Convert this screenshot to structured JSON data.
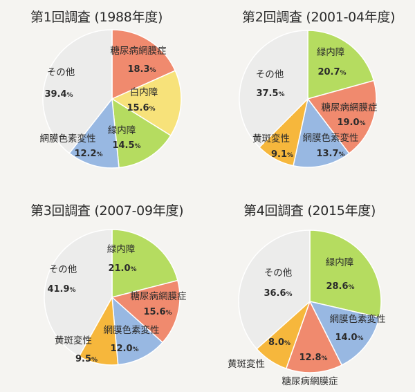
{
  "chart_data": [
    {
      "type": "pie",
      "title": "第1回調査 (1988年度)",
      "slices": [
        {
          "label": "糖尿病網膜症",
          "value": 18.3,
          "value_text": "18.3",
          "color": "#f08a6e"
        },
        {
          "label": "白内障",
          "value": 15.6,
          "value_text": "15.6",
          "color": "#f7e27a"
        },
        {
          "label": "緑内障",
          "value": 14.5,
          "value_text": "14.5",
          "color": "#b5dc60"
        },
        {
          "label": "網膜色素変性",
          "value": 12.2,
          "value_text": "12.2",
          "color": "#98b8e2"
        },
        {
          "label": "その他",
          "value": 39.4,
          "value_text": "39.4",
          "color": "#ececeb"
        }
      ]
    },
    {
      "type": "pie",
      "title": "第2回調査 (2001-04年度)",
      "slices": [
        {
          "label": "緑内障",
          "value": 20.7,
          "value_text": "20.7",
          "color": "#b5dc60"
        },
        {
          "label": "糖尿病網膜症",
          "value": 19.0,
          "value_text": "19.0",
          "color": "#f08a6e"
        },
        {
          "label": "網膜色素変性",
          "value": 13.7,
          "value_text": "13.7",
          "color": "#98b8e2"
        },
        {
          "label": "黄斑変性",
          "value": 9.1,
          "value_text": "9.1",
          "color": "#f6b73c"
        },
        {
          "label": "その他",
          "value": 37.5,
          "value_text": "37.5",
          "color": "#ececeb"
        }
      ]
    },
    {
      "type": "pie",
      "title": "第3回調査 (2007-09年度)",
      "slices": [
        {
          "label": "緑内障",
          "value": 21.0,
          "value_text": "21.0",
          "color": "#b5dc60"
        },
        {
          "label": "糖尿病網膜症",
          "value": 15.6,
          "value_text": "15.6",
          "color": "#f08a6e"
        },
        {
          "label": "網膜色素変性",
          "value": 12.0,
          "value_text": "12.0",
          "color": "#98b8e2"
        },
        {
          "label": "黄斑変性",
          "value": 9.5,
          "value_text": "9.5",
          "color": "#f6b73c"
        },
        {
          "label": "その他",
          "value": 41.9,
          "value_text": "41.9",
          "color": "#ececeb"
        }
      ]
    },
    {
      "type": "pie",
      "title": "第4回調査 (2015年度)",
      "slices": [
        {
          "label": "緑内障",
          "value": 28.6,
          "value_text": "28.6",
          "color": "#b5dc60"
        },
        {
          "label": "網膜色素変性",
          "value": 14.0,
          "value_text": "14.0",
          "color": "#98b8e2"
        },
        {
          "label": "糖尿病網膜症",
          "value": 12.8,
          "value_text": "12.8",
          "color": "#f08a6e"
        },
        {
          "label": "黄斑変性",
          "value": 8.0,
          "value_text": "8.0",
          "color": "#f6b73c"
        },
        {
          "label": "その他",
          "value": 36.6,
          "value_text": "36.6",
          "color": "#ececeb"
        }
      ]
    }
  ],
  "value_suffix": "%"
}
